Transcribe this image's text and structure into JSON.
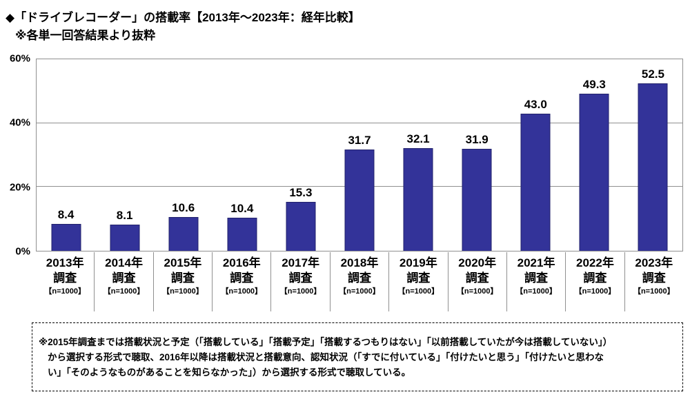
{
  "title": "◆「ドライブレコーダー」の搭載率【2013年～2023年：経年比較】",
  "subtitle": "※各単一回答結果より抜粋",
  "chart_data": {
    "type": "bar",
    "categories": [
      "2013年",
      "2014年",
      "2015年",
      "2016年",
      "2017年",
      "2018年",
      "2019年",
      "2020年",
      "2021年",
      "2022年",
      "2023年"
    ],
    "category_line2": "調査",
    "category_line3": "【n=1000】",
    "values": [
      8.4,
      8.1,
      10.6,
      10.4,
      15.3,
      31.7,
      32.1,
      31.9,
      43.0,
      49.3,
      52.5
    ],
    "value_labels": [
      "8.4",
      "8.1",
      "10.6",
      "10.4",
      "15.3",
      "31.7",
      "32.1",
      "31.9",
      "43.0",
      "49.3",
      "52.5"
    ],
    "title": "「ドライブレコーダー」の搭載率【2013年～2023年：経年比較】",
    "xlabel": "",
    "ylabel": "",
    "ylim": [
      0,
      60
    ],
    "yticks": [
      0,
      20,
      40,
      60
    ],
    "ytick_labels": [
      "0%",
      "20%",
      "40%",
      "60%"
    ],
    "grid": true,
    "legend": "none",
    "bar_color": "#333399"
  },
  "footnote": {
    "lines": [
      "※2015年調査までは搭載状況と予定（「搭載している」「搭載予定」「搭載するつもりはない」「以前搭載していたが今は搭載していない」）",
      "から選択する形式で聴取、2016年以降は搭載状況と搭載意向、認知状況（「すでに付いている」「付けたいと思う」「付けたいと思わな",
      "い」「そのようなものがあることを知らなかった」）から選択する形式で聴取している。"
    ]
  }
}
